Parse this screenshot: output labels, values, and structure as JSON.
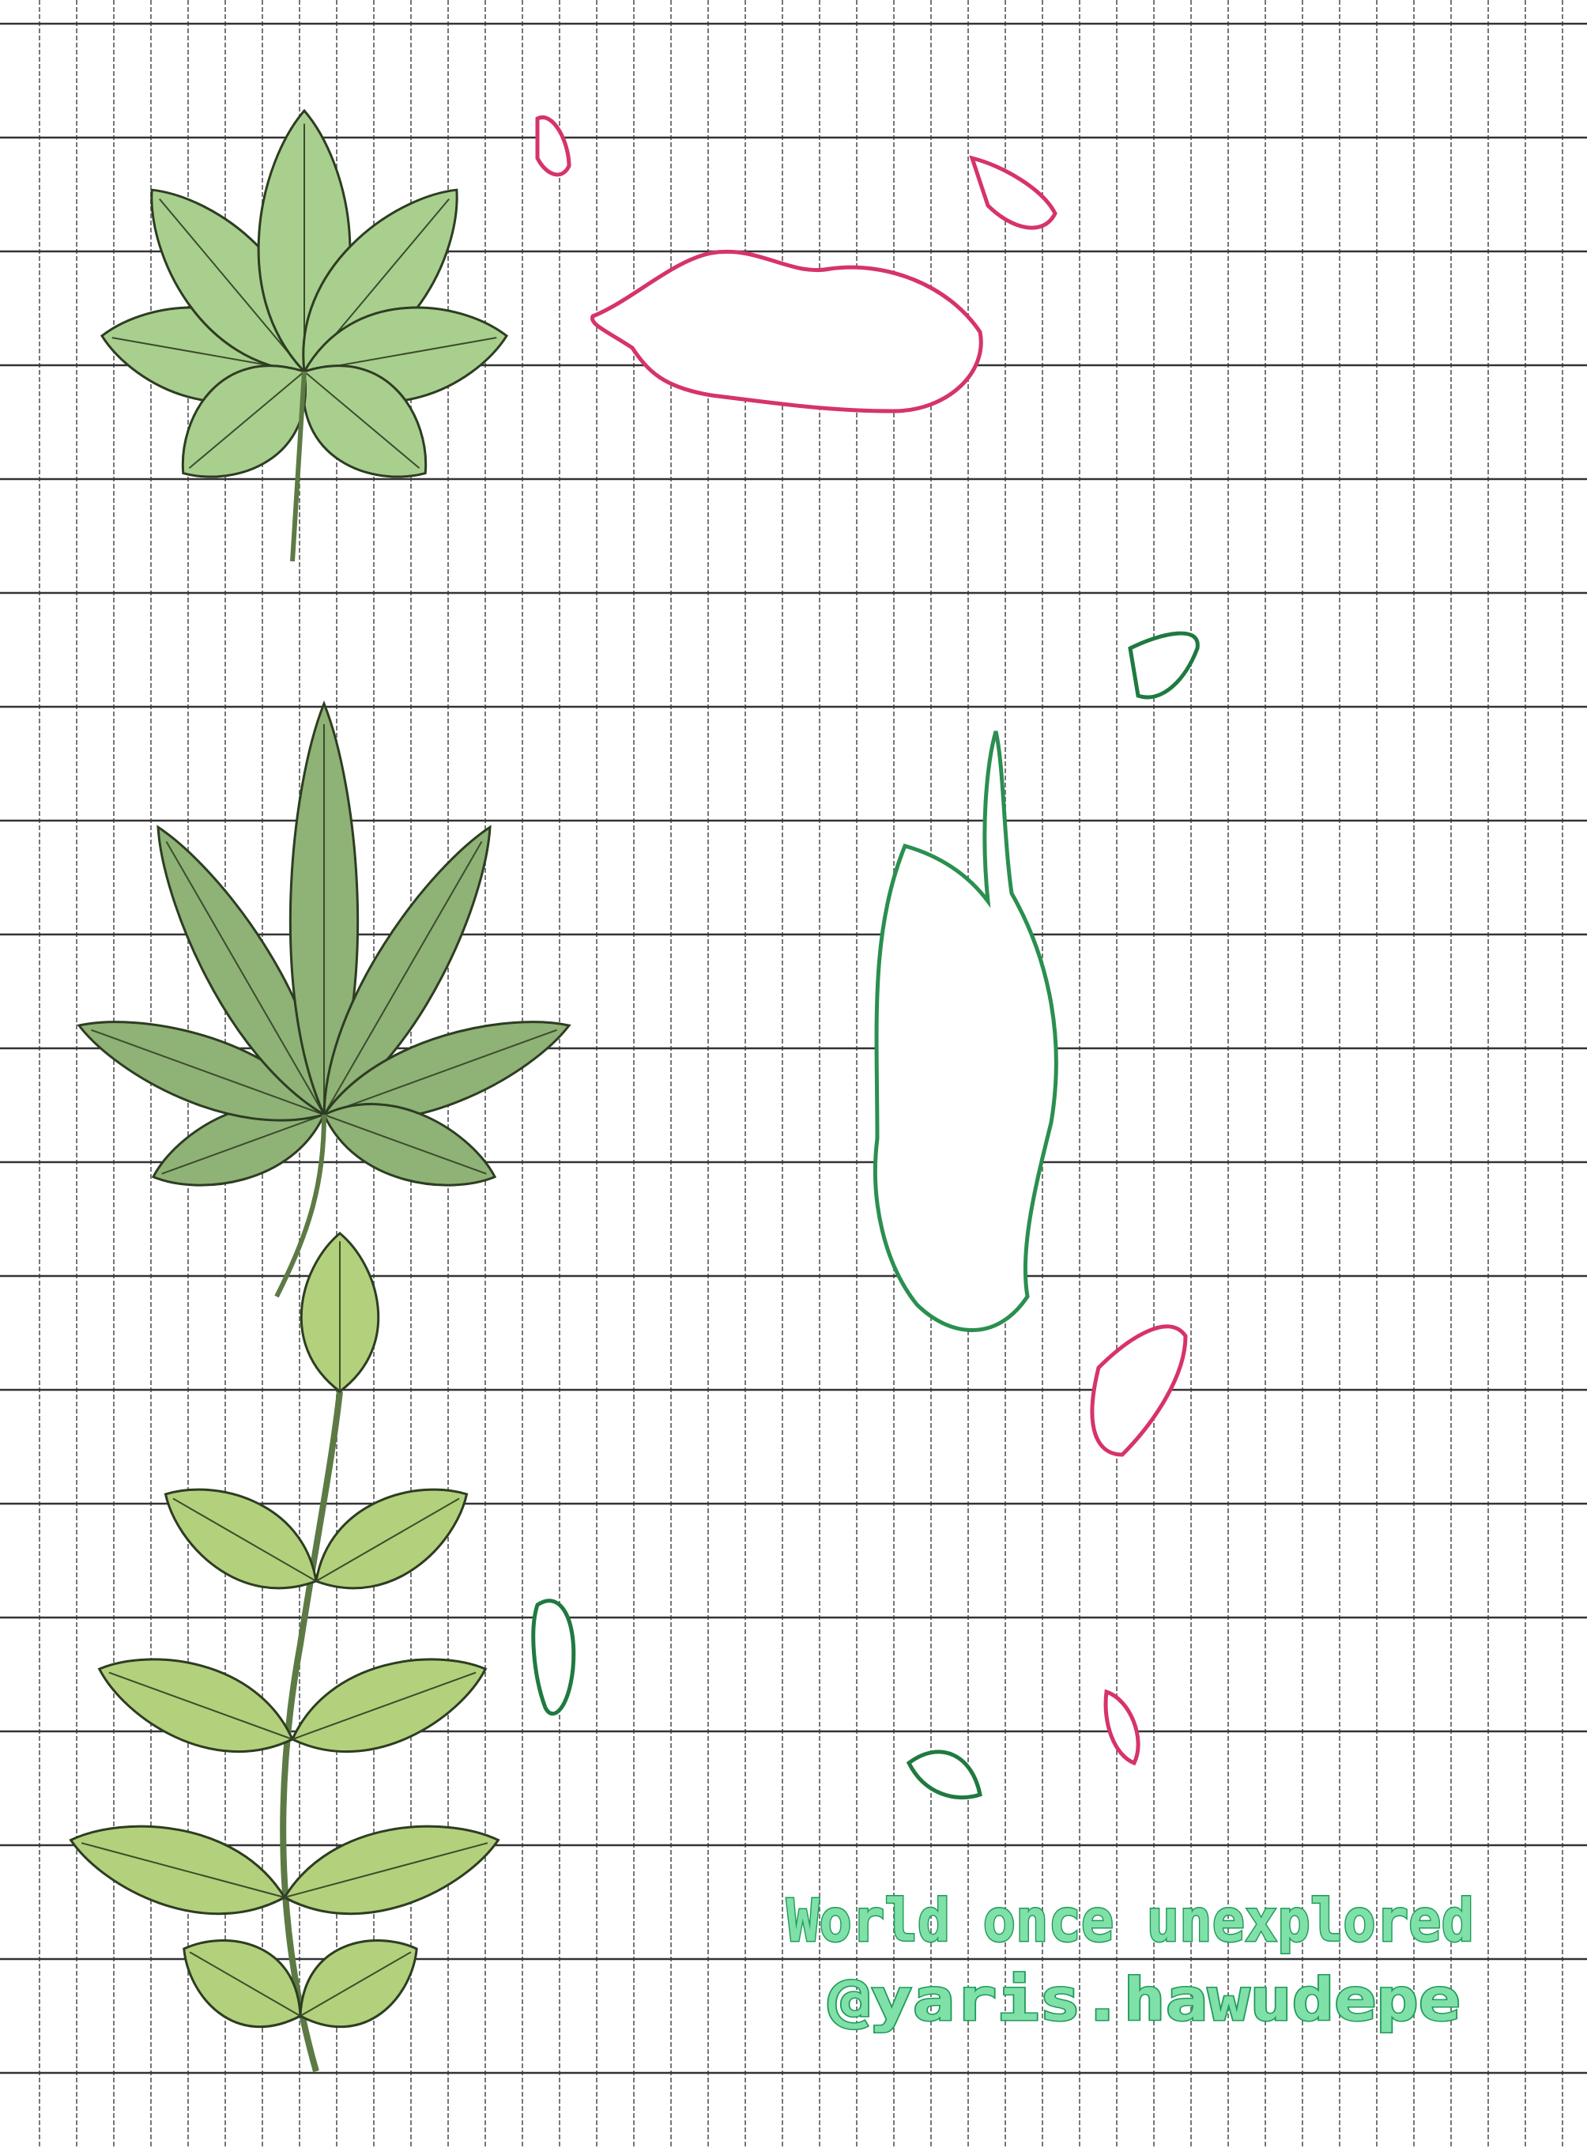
{
  "artwork": {
    "caption": "World once unexplored",
    "handle": "@yaris.hawudepe"
  }
}
